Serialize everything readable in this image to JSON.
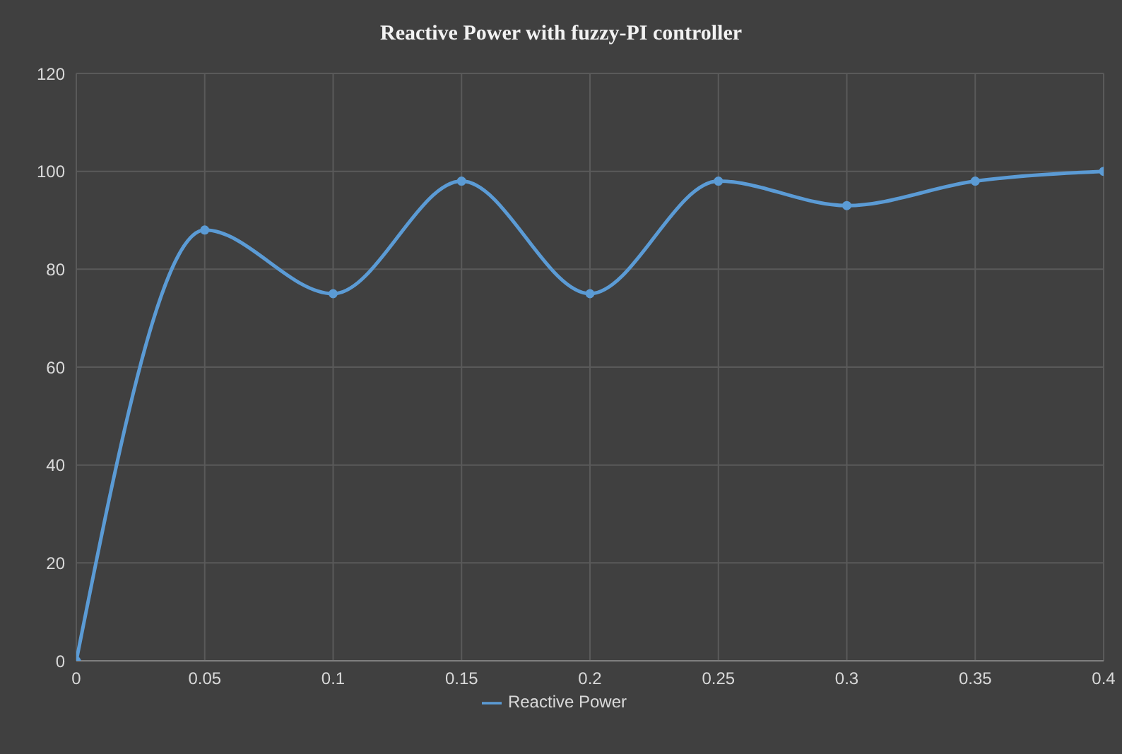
{
  "chart_data": {
    "type": "line",
    "title": "Reactive Power with fuzzy-PI controller",
    "x": [
      0,
      0.05,
      0.1,
      0.15,
      0.2,
      0.25,
      0.3,
      0.35,
      0.4
    ],
    "series": [
      {
        "name": "Reactive Power",
        "color": "#5b9bd5",
        "values": [
          0,
          88,
          75,
          98,
          75,
          98,
          93,
          98,
          100
        ]
      }
    ],
    "xlim": [
      0,
      0.4
    ],
    "xticks": [
      0,
      0.05,
      0.1,
      0.15,
      0.2,
      0.25,
      0.3,
      0.35,
      0.4
    ],
    "ylim": [
      0,
      120
    ],
    "yticks": [
      0,
      20,
      40,
      60,
      80,
      100,
      120
    ],
    "grid": true,
    "legend": "bottom",
    "marker": "circle",
    "line_style": "solid"
  }
}
